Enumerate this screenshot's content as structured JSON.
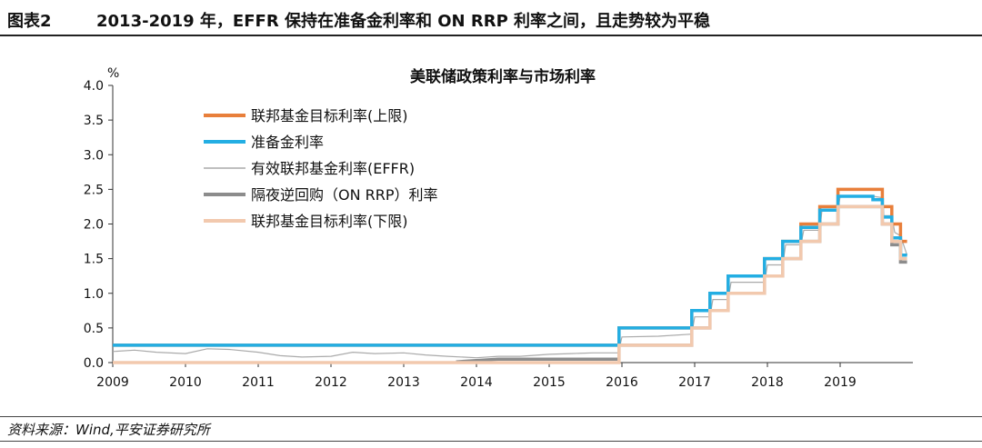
{
  "figure": {
    "label": "图表2",
    "title": "2013-2019 年，EFFR 保持在准备金利率和 ON RRP 利率之间，且走势较为平稳",
    "source": "资料来源：Wind,平安证券研究所"
  },
  "chart_data": {
    "type": "line",
    "title": "美联储政策利率与市场利率",
    "ylabel": "%",
    "xlim": [
      2009.0,
      2020.0
    ],
    "ylim": [
      0,
      4.0
    ],
    "yticks": [
      "0.0",
      "0.5",
      "1.0",
      "1.5",
      "2.0",
      "2.5",
      "3.0",
      "3.5",
      "4.0"
    ],
    "xticks": [
      "2009",
      "2010",
      "2011",
      "2012",
      "2013",
      "2014",
      "2015",
      "2016",
      "2017",
      "2018",
      "2019"
    ],
    "grid": false,
    "legend_position": "top-left",
    "series": [
      {
        "name": "联邦基金目标利率(上限)",
        "color": "#E87F3B",
        "style": "thick",
        "x": [
          2009.0,
          2015.96,
          2015.96,
          2016.96,
          2016.96,
          2017.21,
          2017.21,
          2017.46,
          2017.46,
          2017.96,
          2017.96,
          2018.21,
          2018.21,
          2018.46,
          2018.46,
          2018.72,
          2018.72,
          2018.97,
          2018.97,
          2019.58,
          2019.58,
          2019.71,
          2019.71,
          2019.83,
          2019.83,
          2019.92
        ],
        "y": [
          0.25,
          0.25,
          0.5,
          0.5,
          0.75,
          0.75,
          1.0,
          1.0,
          1.25,
          1.25,
          1.5,
          1.5,
          1.75,
          1.75,
          2.0,
          2.0,
          2.25,
          2.25,
          2.5,
          2.5,
          2.25,
          2.25,
          2.0,
          2.0,
          1.75,
          1.75
        ]
      },
      {
        "name": "准备金利率",
        "color": "#23AEE3",
        "style": "thick",
        "x": [
          2009.0,
          2015.96,
          2015.96,
          2016.96,
          2016.96,
          2017.21,
          2017.21,
          2017.46,
          2017.46,
          2017.96,
          2017.96,
          2018.21,
          2018.21,
          2018.46,
          2018.46,
          2018.72,
          2018.72,
          2018.97,
          2018.97,
          2019.45,
          2019.45,
          2019.58,
          2019.58,
          2019.71,
          2019.71,
          2019.83,
          2019.83,
          2019.92
        ],
        "y": [
          0.25,
          0.25,
          0.5,
          0.5,
          0.75,
          0.75,
          1.0,
          1.0,
          1.25,
          1.25,
          1.5,
          1.5,
          1.75,
          1.75,
          1.95,
          1.95,
          2.2,
          2.2,
          2.4,
          2.4,
          2.35,
          2.35,
          2.1,
          2.1,
          1.8,
          1.8,
          1.55,
          1.55
        ]
      },
      {
        "name": "有效联邦基金利率(EFFR)",
        "color": "#AAAAAA",
        "style": "thin",
        "x": [
          2009.0,
          2009.3,
          2009.6,
          2010.0,
          2010.3,
          2010.6,
          2011.0,
          2011.3,
          2011.6,
          2012.0,
          2012.3,
          2012.6,
          2013.0,
          2013.3,
          2013.6,
          2014.0,
          2014.3,
          2014.6,
          2015.0,
          2015.3,
          2015.6,
          2015.95,
          2016.0,
          2016.5,
          2016.96,
          2017.0,
          2017.21,
          2017.25,
          2017.46,
          2017.5,
          2017.96,
          2018.0,
          2018.21,
          2018.25,
          2018.46,
          2018.5,
          2018.72,
          2018.75,
          2018.97,
          2019.0,
          2019.45,
          2019.58,
          2019.6,
          2019.71,
          2019.75,
          2019.83,
          2019.92
        ],
        "y": [
          0.16,
          0.18,
          0.15,
          0.13,
          0.2,
          0.19,
          0.15,
          0.1,
          0.08,
          0.09,
          0.15,
          0.13,
          0.14,
          0.11,
          0.09,
          0.07,
          0.09,
          0.09,
          0.12,
          0.13,
          0.14,
          0.14,
          0.37,
          0.38,
          0.41,
          0.66,
          0.66,
          0.91,
          0.91,
          1.16,
          1.16,
          1.41,
          1.41,
          1.7,
          1.7,
          1.91,
          1.91,
          2.2,
          2.2,
          2.4,
          2.4,
          2.38,
          2.12,
          2.12,
          1.88,
          1.83,
          1.55
        ]
      },
      {
        "name": "隔夜逆回购（ON RRP）利率",
        "color": "#8C8C8C",
        "style": "thick",
        "x": [
          2013.72,
          2014.0,
          2014.3,
          2014.6,
          2015.0,
          2015.3,
          2015.6,
          2015.96,
          2015.96,
          2016.96,
          2016.96,
          2017.21,
          2017.21,
          2017.46,
          2017.46,
          2017.96,
          2017.96,
          2018.21,
          2018.21,
          2018.46,
          2018.46,
          2018.72,
          2018.72,
          2018.97,
          2018.97,
          2019.58,
          2019.58,
          2019.71,
          2019.71,
          2019.83,
          2019.83,
          2019.92
        ],
        "y": [
          0.01,
          0.03,
          0.05,
          0.05,
          0.05,
          0.05,
          0.05,
          0.05,
          0.25,
          0.25,
          0.5,
          0.5,
          0.75,
          0.75,
          1.0,
          1.0,
          1.25,
          1.25,
          1.5,
          1.5,
          1.75,
          1.75,
          2.0,
          2.0,
          2.25,
          2.25,
          2.0,
          2.0,
          1.7,
          1.7,
          1.45,
          1.45
        ]
      },
      {
        "name": "联邦基金目标利率(下限)",
        "color": "#F2C9AE",
        "style": "thick",
        "x": [
          2009.0,
          2015.96,
          2015.96,
          2016.96,
          2016.96,
          2017.21,
          2017.21,
          2017.46,
          2017.46,
          2017.96,
          2017.96,
          2018.21,
          2018.21,
          2018.46,
          2018.46,
          2018.72,
          2018.72,
          2018.97,
          2018.97,
          2019.58,
          2019.58,
          2019.71,
          2019.71,
          2019.83,
          2019.83,
          2019.92
        ],
        "y": [
          0.0,
          0.0,
          0.25,
          0.25,
          0.5,
          0.5,
          0.75,
          0.75,
          1.0,
          1.0,
          1.25,
          1.25,
          1.5,
          1.5,
          1.75,
          1.75,
          2.0,
          2.0,
          2.25,
          2.25,
          2.0,
          2.0,
          1.75,
          1.75,
          1.5,
          1.5
        ]
      }
    ]
  }
}
